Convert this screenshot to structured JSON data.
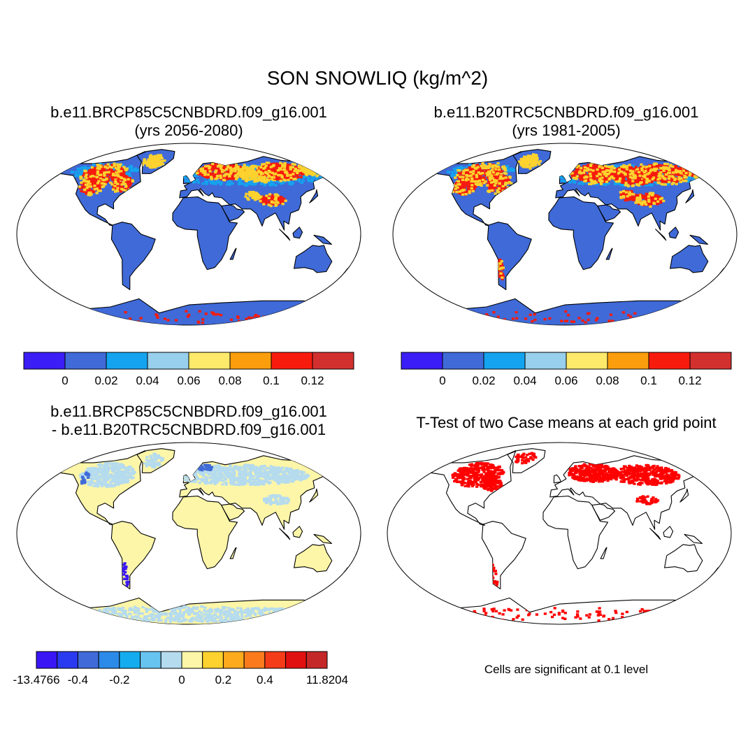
{
  "figure": {
    "title": "SON SNOWLIQ (kg/m^2)"
  },
  "panels": [
    {
      "id": "top-left",
      "title_line1": "b.e11.BRCP85C5CNBDRD.f09_g16.001",
      "title_line2": "(yrs 2056-2080)"
    },
    {
      "id": "top-right",
      "title_line1": "b.e11.B20TRC5CNBDRD.f09_g16.001",
      "title_line2": "(yrs 1981-2005)"
    },
    {
      "id": "bottom-left",
      "title_line1": "b.e11.BRCP85C5CNBDRD.f09_g16.001",
      "title_line2": "- b.e11.B20TRC5CNBDRD.f09_g16.001"
    },
    {
      "id": "bottom-right",
      "title_line1": "T-Test of two Case means at each grid point"
    }
  ],
  "colorbars": {
    "top": {
      "colors": [
        "#3a1ef5",
        "#3f6ad8",
        "#14a3ef",
        "#97cfec",
        "#fde96a",
        "#fb9e0d",
        "#f71b0e",
        "#d2302f"
      ],
      "labels": [
        "0",
        "0.02",
        "0.04",
        "0.06",
        "0.08",
        "0.1",
        "0.12"
      ]
    },
    "bottom": {
      "colors": [
        "#3a16f5",
        "#2a3af0",
        "#3f6ad8",
        "#2c8ae8",
        "#14acef",
        "#67c3ef",
        "#b5dbee",
        "#fdf6a8",
        "#fdd22e",
        "#fdaa1d",
        "#fb7b1c",
        "#f43c18",
        "#e11010",
        "#c52828"
      ],
      "labels": [
        "-13.4766",
        "-0.4",
        "-0.2",
        "0",
        "0.2",
        "0.4",
        "11.8204"
      ]
    }
  },
  "note": "Cells are significant at 0.1 level",
  "colors": {
    "ocean": "#ffffff",
    "land_base_top": "#3f6ad8",
    "land_base_diff": "#fdf6a8",
    "snow_high": "#f71b0e",
    "snow_mid": "#fdd22e",
    "snow_low": "#14a3ef",
    "diff_neg": "#b5dbee",
    "signif": "#ff0000"
  }
}
